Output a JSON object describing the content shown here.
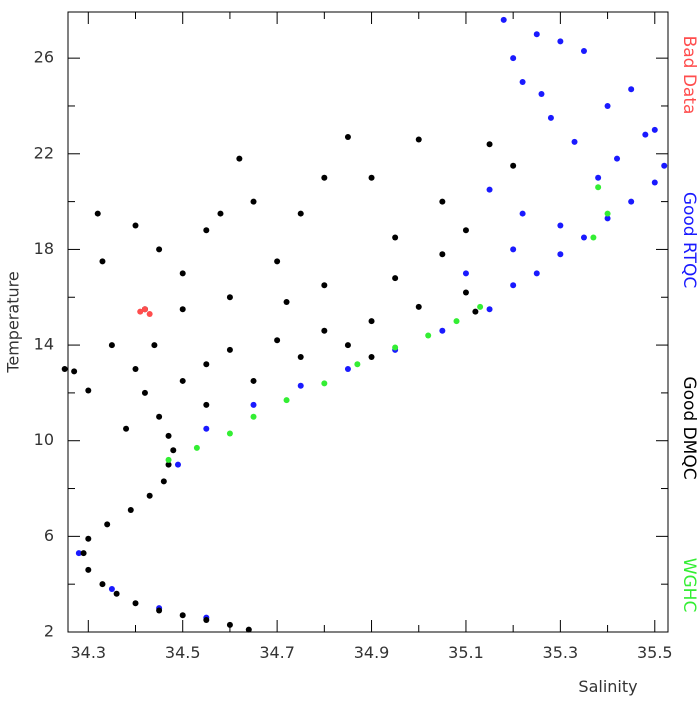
{
  "chart_data": {
    "type": "scatter",
    "x_label": "Salinity",
    "y_label": "Temperature",
    "xlim": [
      34.257,
      35.528
    ],
    "ylim": [
      2,
      27.93
    ],
    "xticks": [
      34.3,
      34.5,
      34.7,
      34.9,
      35.1,
      35.3,
      35.5
    ],
    "xminor_ticks": [
      34.4,
      34.6,
      34.8,
      35.0,
      35.2,
      35.4
    ],
    "yticks": [
      2,
      6,
      10,
      14,
      18,
      22,
      26
    ],
    "yminor_ticks": [
      4,
      8,
      12,
      16,
      20,
      24
    ],
    "series": [
      {
        "name": "Bad Data",
        "color": "#ff4d4d",
        "x": [
          34.41,
          34.43,
          34.42
        ],
        "values": [
          15.4,
          15.3,
          15.5
        ]
      },
      {
        "name": "Good RTQC",
        "color": "#1a1aff",
        "x": [
          34.28,
          34.35,
          34.45,
          34.55,
          34.49,
          34.55,
          34.65,
          34.75,
          34.85,
          34.95,
          35.05,
          35.15,
          35.2,
          35.25,
          35.3,
          35.35,
          35.4,
          35.45,
          35.5,
          35.52,
          35.48,
          35.45,
          35.4,
          35.35,
          35.3,
          35.25,
          35.2,
          35.22,
          35.28,
          35.33,
          35.38,
          35.42,
          35.3,
          35.2,
          35.1,
          35.15,
          35.22,
          35.5,
          35.18,
          35.26
        ],
        "values": [
          5.3,
          3.8,
          3.0,
          2.6,
          9,
          10.5,
          11.5,
          12.3,
          13,
          13.8,
          14.6,
          15.5,
          16.5,
          17,
          17.8,
          18.5,
          19.3,
          20,
          20.8,
          21.5,
          22.8,
          24.7,
          24,
          26.3,
          26.7,
          27,
          26,
          25,
          23.5,
          22.5,
          21,
          21.8,
          19,
          18,
          17,
          20.5,
          19.5,
          23,
          27.6,
          24.5
        ]
      },
      {
        "name": "Good DMQC",
        "color": "#000000",
        "x": [
          34.64,
          34.6,
          34.55,
          34.5,
          34.45,
          34.4,
          34.36,
          34.33,
          34.3,
          34.29,
          34.3,
          34.34,
          34.39,
          34.43,
          34.46,
          34.47,
          34.48,
          34.47,
          34.45,
          34.42,
          34.4,
          34.44,
          34.5,
          34.55,
          34.6,
          34.7,
          34.8,
          34.9,
          35.0,
          35.1,
          34.35,
          34.33,
          34.32,
          34.4,
          34.45,
          34.5,
          34.55,
          34.6,
          34.65,
          34.7,
          34.75,
          34.8,
          34.85,
          34.9,
          34.95,
          35.0,
          35.05,
          35.1,
          35.15,
          35.2,
          34.27,
          34.25,
          34.3,
          34.38,
          34.5,
          34.55,
          34.65,
          34.75,
          34.85,
          34.95,
          35.05,
          34.42,
          34.62,
          34.58,
          34.72,
          34.8,
          35.12,
          34.9
        ],
        "values": [
          2.1,
          2.3,
          2.5,
          2.7,
          2.9,
          3.2,
          3.6,
          4.0,
          4.6,
          5.3,
          5.9,
          6.5,
          7.1,
          7.7,
          8.3,
          9.0,
          9.6,
          10.2,
          11,
          12,
          13,
          14,
          12.5,
          13.2,
          13.8,
          14.2,
          14.6,
          15,
          15.6,
          16.2,
          14,
          17.5,
          19.5,
          19,
          18,
          17,
          18.8,
          16,
          20,
          17.5,
          19.5,
          16.5,
          22.7,
          21,
          18.5,
          22.6,
          20,
          18.8,
          22.4,
          21.5,
          12.9,
          13,
          12.1,
          10.5,
          15.5,
          11.5,
          12.5,
          13.5,
          14,
          16.8,
          17.8,
          15.5,
          21.8,
          19.5,
          15.8,
          21,
          15.4,
          13.5
        ]
      },
      {
        "name": "WGHC",
        "color": "#33ee33",
        "x": [
          34.47,
          34.53,
          34.6,
          34.65,
          34.72,
          34.8,
          34.87,
          34.95,
          35.02,
          35.08,
          35.13,
          35.38,
          35.4,
          35.37
        ],
        "values": [
          9.2,
          9.7,
          10.3,
          11,
          11.7,
          12.4,
          13.2,
          13.9,
          14.4,
          15,
          15.6,
          20.6,
          19.5,
          18.5
        ]
      }
    ]
  }
}
